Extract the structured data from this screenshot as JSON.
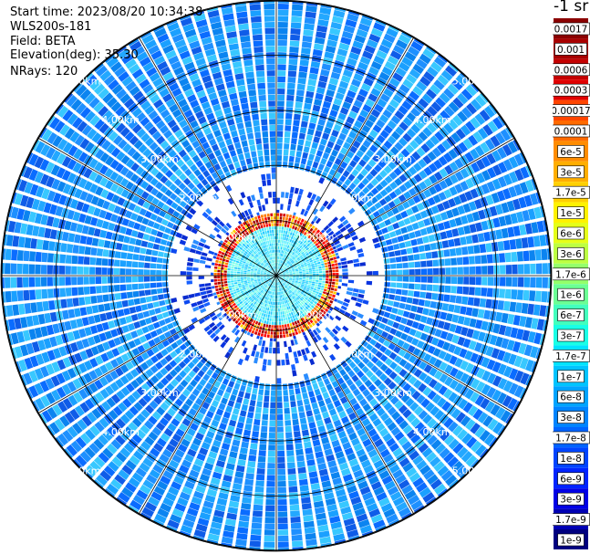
{
  "header": {
    "start_time": "Start time: 2023/08/20 10:34:38",
    "instrument": "WLS200s-181",
    "field": "Field: BETA",
    "elevation": "Elevation(deg): 35.30",
    "nrays": "NRays: 120"
  },
  "colorbar": {
    "unit_label": "-1 sr",
    "entries": [
      {
        "label": "0.0017",
        "color": "#8b0000"
      },
      {
        "label": "0.001",
        "color": "#a80000"
      },
      {
        "label": "0.0006",
        "color": "#c40000"
      },
      {
        "label": "0.0003",
        "color": "#e00000"
      },
      {
        "label": "0.00017",
        "color": "#ff4500"
      },
      {
        "label": "0.0001",
        "color": "#ff6a00"
      },
      {
        "label": "6e-5",
        "color": "#ff8c00"
      },
      {
        "label": "3e-5",
        "color": "#ffae00"
      },
      {
        "label": "1.7e-5",
        "color": "#ffd000"
      },
      {
        "label": "1e-5",
        "color": "#fff200"
      },
      {
        "label": "6e-6",
        "color": "#e6ff19"
      },
      {
        "label": "3e-6",
        "color": "#bdff42"
      },
      {
        "label": "1.7e-6",
        "color": "#94ff6b"
      },
      {
        "label": "1e-6",
        "color": "#6bff94"
      },
      {
        "label": "6e-7",
        "color": "#42ffbd"
      },
      {
        "label": "3e-7",
        "color": "#19ffe6"
      },
      {
        "label": "1.7e-7",
        "color": "#00e4ff"
      },
      {
        "label": "1e-7",
        "color": "#00c4ff"
      },
      {
        "label": "6e-8",
        "color": "#00a4ff"
      },
      {
        "label": "3e-8",
        "color": "#0084ff"
      },
      {
        "label": "1.7e-8",
        "color": "#0064ff"
      },
      {
        "label": "1e-8",
        "color": "#0044ff"
      },
      {
        "label": "6e-9",
        "color": "#0024ff"
      },
      {
        "label": "3e-9",
        "color": "#0000e6"
      },
      {
        "label": "1.7e-9",
        "color": "#0000b4"
      },
      {
        "label": "1e-9",
        "color": "#000080"
      }
    ]
  },
  "chart_data": {
    "type": "heatmap",
    "projection": "polar",
    "n_rays": 120,
    "max_range_km": 5.0,
    "range_rings_km": [
      1,
      2,
      3,
      4,
      5
    ],
    "range_ring_labels": [
      "1.00km",
      "2.00km",
      "3.00km",
      "4.00km",
      "5.00km"
    ],
    "spokes_deg": [
      0,
      30,
      60,
      90,
      120,
      150,
      180,
      210,
      240,
      270,
      300,
      330
    ],
    "value_by_range": [
      {
        "range_km": [
          0.0,
          0.9
        ],
        "value": "1e-7 to 3e-7"
      },
      {
        "range_km": [
          0.9,
          1.1
        ],
        "value": "3e-4 to 1.7e-3"
      },
      {
        "range_km": [
          1.1,
          2.0
        ],
        "value": "1e-8 to 1e-7"
      },
      {
        "range_km": [
          2.0,
          5.0
        ],
        "value": "3e-8 to 1e-7"
      }
    ]
  }
}
